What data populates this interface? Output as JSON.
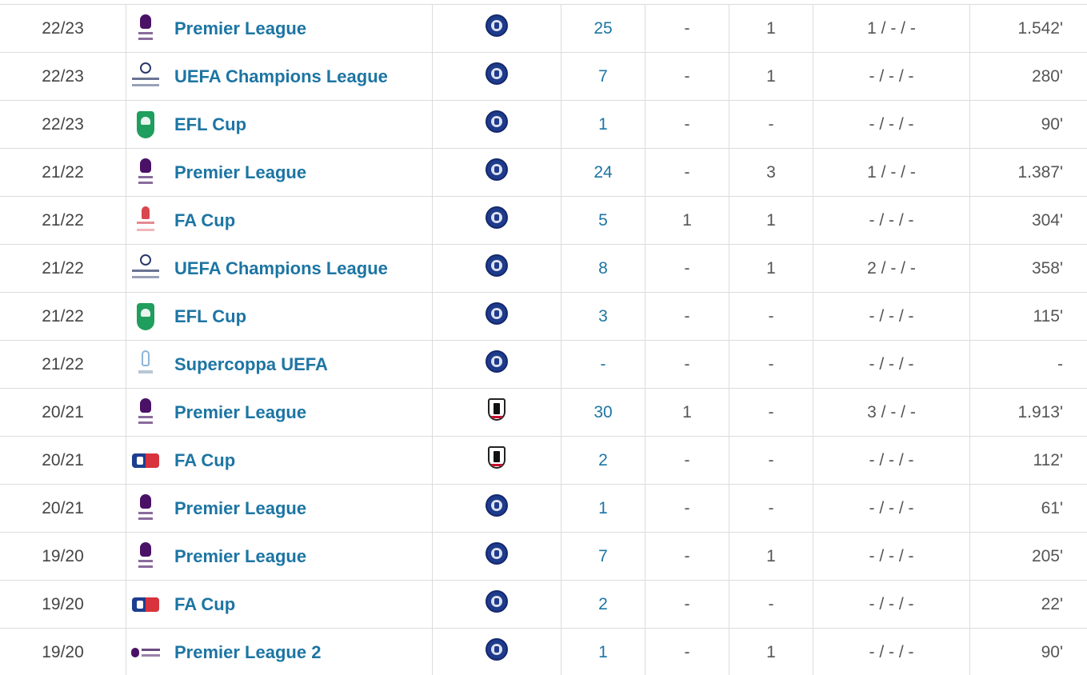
{
  "rows": [
    {
      "season": "22/23",
      "competition": "Premier League",
      "comp_icon": "premier-league-icon",
      "club": "chelsea-crest-icon",
      "appearances": "25",
      "goals": "-",
      "assists": "1",
      "cards": "1 / - / -",
      "minutes": "1.542'"
    },
    {
      "season": "22/23",
      "competition": "UEFA Champions League",
      "comp_icon": "champions-league-icon",
      "club": "chelsea-crest-icon",
      "appearances": "7",
      "goals": "-",
      "assists": "1",
      "cards": "- / - / -",
      "minutes": "280'"
    },
    {
      "season": "22/23",
      "competition": "EFL Cup",
      "comp_icon": "efl-cup-icon",
      "club": "chelsea-crest-icon",
      "appearances": "1",
      "goals": "-",
      "assists": "-",
      "cards": "- / - / -",
      "minutes": "90'"
    },
    {
      "season": "21/22",
      "competition": "Premier League",
      "comp_icon": "premier-league-icon",
      "club": "chelsea-crest-icon",
      "appearances": "24",
      "goals": "-",
      "assists": "3",
      "cards": "1 / - / -",
      "minutes": "1.387'"
    },
    {
      "season": "21/22",
      "competition": "FA Cup",
      "comp_icon": "fa-cup-old-icon",
      "club": "chelsea-crest-icon",
      "appearances": "5",
      "goals": "1",
      "assists": "1",
      "cards": "- / - / -",
      "minutes": "304'"
    },
    {
      "season": "21/22",
      "competition": "UEFA Champions League",
      "comp_icon": "champions-league-icon",
      "club": "chelsea-crest-icon",
      "appearances": "8",
      "goals": "-",
      "assists": "1",
      "cards": "2 / - / -",
      "minutes": "358'"
    },
    {
      "season": "21/22",
      "competition": "EFL Cup",
      "comp_icon": "efl-cup-icon",
      "club": "chelsea-crest-icon",
      "appearances": "3",
      "goals": "-",
      "assists": "-",
      "cards": "- / - / -",
      "minutes": "115'"
    },
    {
      "season": "21/22",
      "competition": "Supercoppa UEFA",
      "comp_icon": "uefa-super-cup-icon",
      "club": "chelsea-crest-icon",
      "appearances": "-",
      "goals": "-",
      "assists": "-",
      "cards": "- / - / -",
      "minutes": "-"
    },
    {
      "season": "20/21",
      "competition": "Premier League",
      "comp_icon": "premier-league-icon",
      "club": "fulham-crest-icon",
      "appearances": "30",
      "goals": "1",
      "assists": "-",
      "cards": "3 / - / -",
      "minutes": "1.913'"
    },
    {
      "season": "20/21",
      "competition": "FA Cup",
      "comp_icon": "fa-cup-icon",
      "club": "fulham-crest-icon",
      "appearances": "2",
      "goals": "-",
      "assists": "-",
      "cards": "- / - / -",
      "minutes": "112'"
    },
    {
      "season": "20/21",
      "competition": "Premier League",
      "comp_icon": "premier-league-icon",
      "club": "chelsea-crest-icon",
      "appearances": "1",
      "goals": "-",
      "assists": "-",
      "cards": "- / - / -",
      "minutes": "61'"
    },
    {
      "season": "19/20",
      "competition": "Premier League",
      "comp_icon": "premier-league-icon",
      "club": "chelsea-crest-icon",
      "appearances": "7",
      "goals": "-",
      "assists": "1",
      "cards": "- / - / -",
      "minutes": "205'"
    },
    {
      "season": "19/20",
      "competition": "FA Cup",
      "comp_icon": "fa-cup-icon",
      "club": "chelsea-crest-icon",
      "appearances": "2",
      "goals": "-",
      "assists": "-",
      "cards": "- / - / -",
      "minutes": "22'"
    },
    {
      "season": "19/20",
      "competition": "Premier League 2",
      "comp_icon": "premier-league-2-icon",
      "club": "chelsea-crest-icon",
      "appearances": "1",
      "goals": "-",
      "assists": "1",
      "cards": "- / - / -",
      "minutes": "90'"
    }
  ],
  "colors": {
    "link": "#1d75a3",
    "border": "#dcdcdc",
    "text": "#333333"
  }
}
